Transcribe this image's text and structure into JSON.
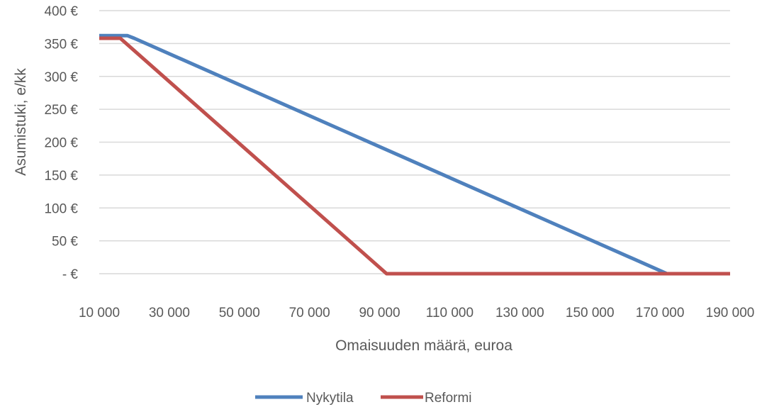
{
  "chart_data": {
    "type": "line",
    "xlabel": "Omaisuuden määrä, euroa",
    "ylabel": "Asumistuki, e/kk",
    "x_ticks": [
      "10 000",
      "30 000",
      "50 000",
      "70 000",
      "90 000",
      "110 000",
      "130 000",
      "150 000",
      "170 000",
      "190 000"
    ],
    "y_ticks": [
      "- €",
      "50 €",
      "100 €",
      "150 €",
      "200 €",
      "250 €",
      "300 €",
      "350 €",
      "400 €"
    ],
    "xlim": [
      10000,
      190000
    ],
    "ylim": [
      0,
      400
    ],
    "grid": true,
    "legend_position": "bottom",
    "series": [
      {
        "name": "Nykytila",
        "color": "#4F81BD",
        "points": [
          [
            10000,
            362
          ],
          [
            18000,
            362
          ],
          [
            20000,
            358
          ],
          [
            172000,
            0
          ],
          [
            190000,
            0
          ]
        ]
      },
      {
        "name": "Reformi",
        "color": "#C0504D",
        "points": [
          [
            10000,
            358
          ],
          [
            16000,
            358
          ],
          [
            92000,
            0
          ],
          [
            190000,
            0
          ]
        ]
      }
    ]
  }
}
